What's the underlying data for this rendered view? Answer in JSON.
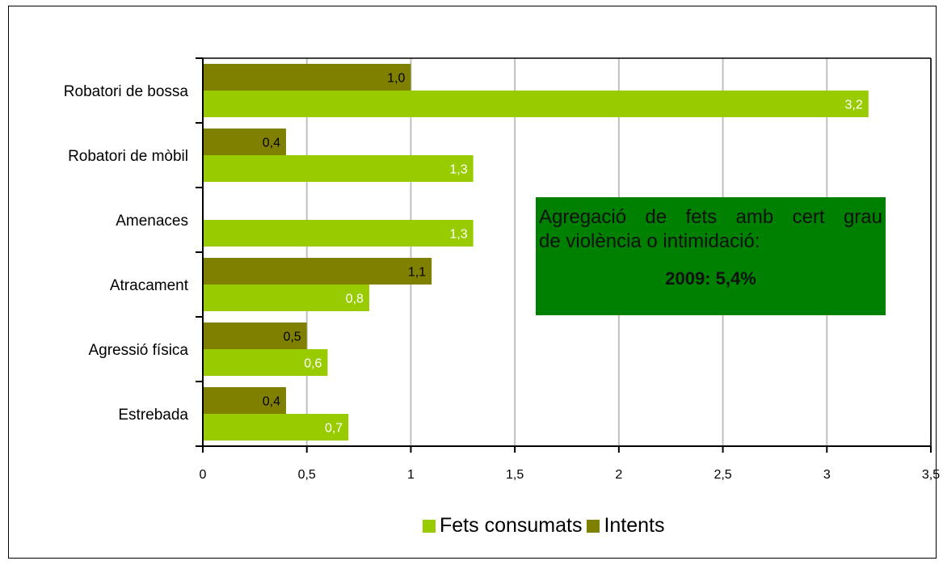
{
  "chart_data": {
    "type": "bar",
    "orientation": "horizontal",
    "categories": [
      "Robatori de bossa",
      "Robatori de mòbil",
      "Amenaces",
      "Atracament",
      "Agressió física",
      "Estrebada"
    ],
    "series": [
      {
        "name": "Intents",
        "values": [
          1.0,
          0.4,
          null,
          1.1,
          0.5,
          0.4
        ],
        "labels": [
          "1,0",
          "0,4",
          "",
          "1,1",
          "0,5",
          "0,4"
        ],
        "color": "#808000"
      },
      {
        "name": "Fets consumats",
        "values": [
          3.2,
          1.3,
          1.3,
          0.8,
          0.6,
          0.7
        ],
        "labels": [
          "3,2",
          "1,3",
          "1,3",
          "0,8",
          "0,6",
          "0,7"
        ],
        "color": "#99CC00"
      }
    ],
    "xlim": [
      0,
      3.5
    ],
    "xticks": [
      0,
      0.5,
      1,
      1.5,
      2,
      2.5,
      3,
      3.5
    ],
    "xtick_labels": [
      "0",
      "0,5",
      "1",
      "1,5",
      "2",
      "2,5",
      "3",
      "3,5"
    ],
    "grid": "vertical",
    "legend_position": "bottom",
    "legend": [
      "Fets consumats",
      "Intents"
    ]
  },
  "annotation": {
    "line1": "Agregació de fets amb cert grau",
    "line2": "de violència o intimidació:",
    "value": "2009: 5,4%",
    "bg_color": "#008000"
  },
  "colors": {
    "grid": "#C0C0C0",
    "axis": "#000000",
    "label_on_dark": "#000000",
    "label_on_light": "#ffffff"
  }
}
